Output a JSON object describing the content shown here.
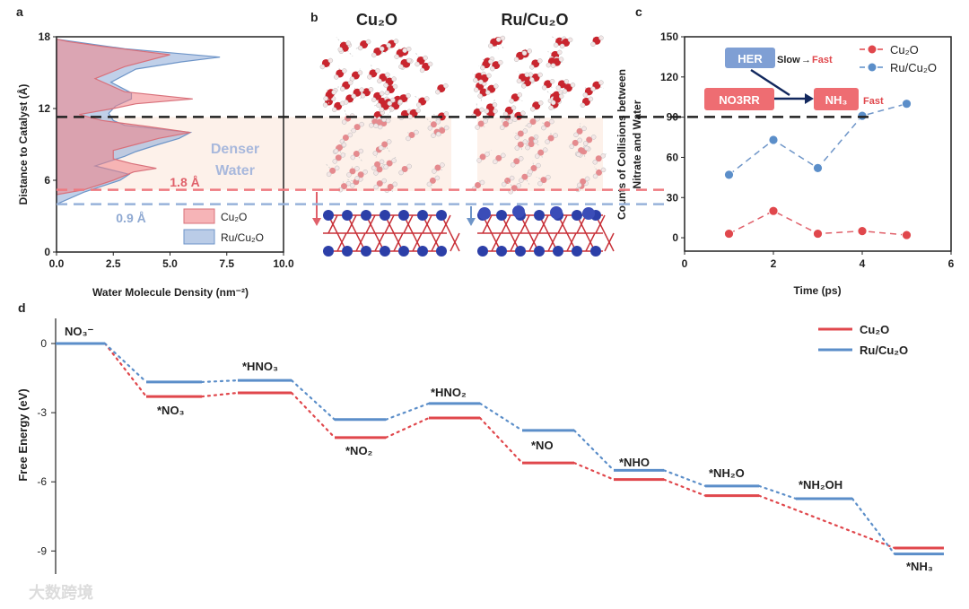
{
  "panel_labels": {
    "a": "a",
    "b": "b",
    "c": "c",
    "d": "d"
  },
  "watermark": "大数跨境",
  "colors": {
    "cu2o": "#e0474c",
    "ru": "#5b8ec9",
    "axis": "#222222",
    "shade": "#fdf1ea",
    "arrow": "#12285e"
  },
  "panel_b": {
    "titles": [
      "Cu₂O",
      "Ru/Cu₂O"
    ]
  },
  "chart_data": [
    {
      "id": "a",
      "type": "area",
      "xlabel": "Water Molecule Density (nm⁻²)",
      "ylabel": "Distance to Catalyst (Å)",
      "xlim": [
        0,
        10
      ],
      "ylim": [
        0,
        18
      ],
      "xticks": [
        "0.0",
        "2.5",
        "5.0",
        "7.5",
        "10.0"
      ],
      "yticks": [
        "0",
        "6",
        "12",
        "18"
      ],
      "xtick_values": [
        0,
        2.5,
        5,
        7.5,
        10
      ],
      "ytick_values": [
        0,
        6,
        12,
        18
      ],
      "legend": [
        "Cu₂O",
        "Ru/Cu₂O"
      ],
      "annotations": {
        "denser": "Denser",
        "water": "Water",
        "gap_cu2o": "1.8 Å",
        "gap_ru": "0.9 Å"
      },
      "reference_lines": {
        "black": 11.3,
        "cu2o": 5.2,
        "ru": 4.0
      },
      "series": [
        {
          "name": "Cu₂O",
          "points": [
            [
              0,
              4.8
            ],
            [
              1.2,
              5.2
            ],
            [
              2.5,
              6
            ],
            [
              3.4,
              6.7
            ],
            [
              4.4,
              7
            ],
            [
              3.3,
              7.4
            ],
            [
              2.5,
              7.8
            ],
            [
              2.5,
              8.5
            ],
            [
              3.5,
              9
            ],
            [
              4.5,
              9.5
            ],
            [
              5.9,
              10
            ],
            [
              4,
              10.5
            ],
            [
              2,
              11
            ],
            [
              1,
              11.5
            ],
            [
              2.5,
              12
            ],
            [
              3.5,
              12.4
            ],
            [
              6,
              12.8
            ],
            [
              3,
              13.4
            ],
            [
              1.7,
              14.5
            ],
            [
              3,
              15.5
            ],
            [
              5,
              16.5
            ],
            [
              2,
              17.2
            ],
            [
              0.5,
              17.6
            ],
            [
              0,
              17.8
            ]
          ]
        },
        {
          "name": "Ru/Cu₂O",
          "points": [
            [
              0,
              4
            ],
            [
              1.2,
              5
            ],
            [
              2.8,
              6
            ],
            [
              3.2,
              6.5
            ],
            [
              1.7,
              7.2
            ],
            [
              3,
              8
            ],
            [
              3.5,
              8.4
            ],
            [
              4.5,
              9
            ],
            [
              5.4,
              9.5
            ],
            [
              5.9,
              10
            ],
            [
              3,
              10.6
            ],
            [
              2.5,
              11
            ],
            [
              2.3,
              11.6
            ],
            [
              2.6,
              12.2
            ],
            [
              3.3,
              12.8
            ],
            [
              3.3,
              13.3
            ],
            [
              2.4,
              14.2
            ],
            [
              3.5,
              15.3
            ],
            [
              5.5,
              15.9
            ],
            [
              7.2,
              16.3
            ],
            [
              3,
              17
            ],
            [
              0,
              17.8
            ]
          ]
        }
      ]
    },
    {
      "id": "c",
      "type": "line",
      "xlabel": "Time (ps)",
      "ylabel": "Counts of Collisions between Nitrate and Water",
      "ylabel_lines": [
        "Counts of Collisions between",
        "Nitrate and Water"
      ],
      "xlim": [
        0,
        6
      ],
      "ylim": [
        -10,
        150
      ],
      "xticks": [
        "0",
        "2",
        "4",
        "6"
      ],
      "xtick_values": [
        0,
        2,
        4,
        6
      ],
      "yticks": [
        "0",
        "30",
        "60",
        "90",
        "120",
        "150"
      ],
      "ytick_values": [
        0,
        30,
        60,
        90,
        120,
        150
      ],
      "x": [
        1,
        2,
        3,
        4,
        5
      ],
      "series": [
        {
          "name": "Cu₂O",
          "values": [
            3,
            20,
            3,
            5,
            2
          ]
        },
        {
          "name": "Ru/Cu₂O",
          "values": [
            47,
            73,
            52,
            91,
            100
          ]
        }
      ],
      "inset": {
        "her": "HER",
        "slow": "Slow",
        "arrow": "→",
        "fast1": "Fast",
        "no3rr": "NO3RR",
        "nh3": "NH₃",
        "fast2": "Fast"
      }
    },
    {
      "id": "d",
      "type": "line",
      "ylabel": "Free Energy (eV)",
      "ylim": [
        -10.2,
        0.9
      ],
      "yticks": [
        "0",
        "-3",
        "-6",
        "-9"
      ],
      "ytick_values": [
        0,
        -3,
        -6,
        -9
      ],
      "states": [
        "NO₃⁻",
        "*NO₃",
        "*HNO₃",
        "*NO₂",
        "*HNO₂",
        "*NO",
        "*NHO",
        "*NH₂O",
        "*NH₂OH",
        "*NH₃"
      ],
      "series": [
        {
          "name": "Cu₂O",
          "values": [
            0,
            -2.3,
            -2.14,
            -4.08,
            -3.23,
            -5.18,
            -5.9,
            -6.6,
            null,
            -8.87
          ]
        },
        {
          "name": "Ru/Cu₂O",
          "values": [
            0,
            -1.67,
            -1.6,
            -3.3,
            -2.6,
            -3.77,
            -5.5,
            -6.18,
            -6.73,
            -9.13
          ]
        }
      ],
      "legend": [
        "Cu₂O",
        "Ru/Cu₂O"
      ]
    }
  ]
}
